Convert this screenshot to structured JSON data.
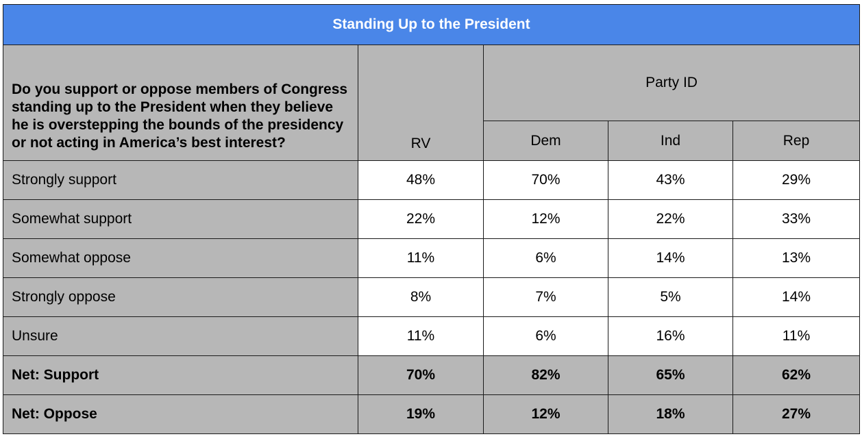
{
  "title": "Standing Up to the President",
  "question": "Do you support or oppose members of Congress standing up to the President when they believe he is overstepping the bounds of the presidency or not acting in America’s best interest?",
  "columns": {
    "rv": "RV",
    "group": "Party ID",
    "dem": "Dem",
    "ind": "Ind",
    "rep": "Rep"
  },
  "rows": [
    {
      "label": "Strongly support",
      "rv": "48%",
      "dem": "70%",
      "ind": "43%",
      "rep": "29%"
    },
    {
      "label": "Somewhat support",
      "rv": "22%",
      "dem": "12%",
      "ind": "22%",
      "rep": "33%"
    },
    {
      "label": "Somewhat oppose",
      "rv": "11%",
      "dem": "6%",
      "ind": "14%",
      "rep": "13%"
    },
    {
      "label": "Strongly oppose",
      "rv": "8%",
      "dem": "7%",
      "ind": "5%",
      "rep": "14%"
    },
    {
      "label": "Unsure",
      "rv": "11%",
      "dem": "6%",
      "ind": "16%",
      "rep": "11%"
    },
    {
      "label": "Net: Support",
      "rv": "70%",
      "dem": "82%",
      "ind": "65%",
      "rep": "62%"
    },
    {
      "label": "Net: Oppose",
      "rv": "19%",
      "dem": "12%",
      "ind": "18%",
      "rep": "27%"
    }
  ],
  "colors": {
    "title_bg": "#4a86e8",
    "header_bg": "#b7b7b7",
    "cell_bg": "#ffffff"
  }
}
